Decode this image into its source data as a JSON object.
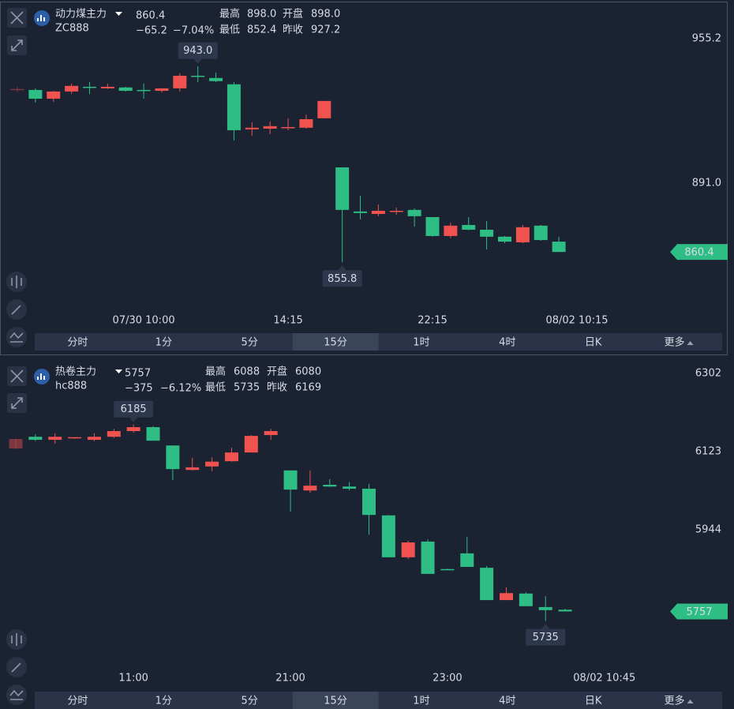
{
  "panels": [
    {
      "name": "动力煤主力",
      "code": "ZC888",
      "price": "860.4",
      "change": "−65.2",
      "change_pct": "−7.04%",
      "stats": [
        {
          "label": "最高",
          "value": "898.0"
        },
        {
          "label": "开盘",
          "value": "898.0"
        },
        {
          "label": "最低",
          "value": "852.4"
        },
        {
          "label": "昨收",
          "value": "927.2"
        }
      ],
      "tabs": [
        "分时",
        "1分",
        "5分",
        "15分",
        "1时",
        "4时",
        "日K",
        "更多"
      ],
      "active_tab": 3
    },
    {
      "name": "热卷主力",
      "code": "hc888",
      "price": "5757",
      "change": "−375",
      "change_pct": "−6.12%",
      "stats": [
        {
          "label": "最高",
          "value": "6088"
        },
        {
          "label": "开盘",
          "value": "6080"
        },
        {
          "label": "最低",
          "value": "5735"
        },
        {
          "label": "昨收",
          "value": "6169"
        }
      ],
      "tabs": [
        "分时",
        "1分",
        "5分",
        "15分",
        "1时",
        "4时",
        "日K",
        "更多"
      ],
      "active_tab": 3
    }
  ],
  "chart_data": [
    {
      "type": "candlestick",
      "up_color": "#f0524f",
      "down_color": "#2ebd85",
      "categories": [
        null,
        null,
        null,
        null,
        null,
        null,
        null,
        "07/30 10:00",
        null,
        null,
        null,
        null,
        null,
        null,
        null,
        "14:15",
        null,
        null,
        null,
        null,
        null,
        null,
        null,
        "22:15",
        null,
        null,
        null,
        null,
        null,
        null,
        null,
        "08/02 10:15"
      ],
      "open": [
        932.8,
        932.4,
        928.5,
        931.7,
        933.8,
        933.1,
        933.5,
        932.4,
        932.0,
        933.1,
        938.7,
        937.7,
        934.9,
        914.9,
        915.2,
        915.6,
        915.6,
        919.8,
        898.0,
        878.4,
        877.3,
        878.4,
        879.1,
        875.9,
        867.5,
        872.4,
        870.3,
        867.2,
        864.7,
        872.1,
        865.0,
        null
      ],
      "high": [
        933.8,
        933.1,
        932.0,
        935.2,
        935.9,
        935.2,
        933.8,
        935.2,
        933.1,
        939.8,
        943.0,
        940.1,
        935.9,
        918.0,
        918.4,
        919.8,
        921.5,
        927.5,
        898.0,
        885.4,
        881.5,
        880.1,
        879.8,
        875.9,
        873.5,
        875.9,
        874.2,
        867.5,
        872.4,
        872.4,
        867.2,
        null
      ],
      "low": [
        931.3,
        926.8,
        927.1,
        930.6,
        930.6,
        932.8,
        931.7,
        928.5,
        931.3,
        931.7,
        935.9,
        935.9,
        909.9,
        912.1,
        912.8,
        914.5,
        915.2,
        919.8,
        855.8,
        874.9,
        876.3,
        877.0,
        871.7,
        867.2,
        866.5,
        870.0,
        861.5,
        864.3,
        864.3,
        865.4,
        860.4,
        null
      ],
      "close": [
        932.8,
        928.5,
        931.7,
        934.2,
        933.5,
        933.8,
        932.0,
        932.0,
        933.1,
        938.7,
        938.4,
        936.3,
        914.5,
        915.6,
        916.3,
        915.9,
        919.4,
        927.5,
        879.1,
        877.7,
        878.7,
        878.7,
        876.3,
        867.5,
        872.1,
        870.3,
        867.2,
        865.0,
        871.4,
        865.7,
        860.4,
        null
      ],
      "ylim": [
        833.8,
        970.6
      ],
      "yticks": [
        955.2,
        {
          "value": 891,
          "label": "891.0"
        }
      ],
      "annotations": [
        {
          "value": 943.0,
          "label": "943.0"
        },
        {
          "value": 855.8,
          "label": "855.8"
        }
      ],
      "last": 860.4
    },
    {
      "type": "candlestick",
      "up_color": "#f0524f",
      "down_color": "#2ebd85",
      "categories": [
        null,
        null,
        null,
        null,
        null,
        null,
        "11:00",
        null,
        null,
        null,
        null,
        null,
        null,
        null,
        "21:00",
        null,
        null,
        null,
        null,
        null,
        null,
        null,
        "23:00",
        null,
        null,
        null,
        null,
        null,
        null,
        null,
        "08/02 10:45"
      ],
      "open": [
        6130,
        6157,
        6150,
        6154,
        6150,
        6157,
        6170,
        6179,
        6137,
        6081,
        6089,
        6101,
        6121,
        6161,
        6080,
        6034,
        6047,
        6043,
        6038,
        5977,
        5881,
        5917,
        5854,
        5890,
        5857,
        5783,
        5798,
        5767,
        5761,
        null,
        null
      ],
      "high": [
        6152,
        6163,
        6165,
        6156,
        6165,
        6175,
        6185,
        6181,
        6137,
        6109,
        6110,
        6132,
        6161,
        6175,
        6080,
        6080,
        6060,
        6053,
        6049,
        5978,
        5919,
        5922,
        5855,
        5928,
        5861,
        5812,
        5801,
        5792,
        5763,
        null,
        null
      ],
      "low": [
        6130,
        6147,
        6141,
        6152,
        6147,
        6154,
        6166,
        6148,
        6058,
        6080,
        6078,
        6100,
        6121,
        6150,
        5986,
        6029,
        6042,
        6034,
        5933,
        5881,
        5877,
        5843,
        5852,
        5859,
        5783,
        5783,
        5769,
        5735,
        5757,
        null,
        null
      ],
      "close": [
        6152,
        6150,
        6157,
        6156,
        6157,
        6170,
        6179,
        6148,
        6083,
        6087,
        6100,
        6121,
        6159,
        6170,
        6036,
        6045,
        6043,
        6038,
        5978,
        5881,
        5915,
        5843,
        5852,
        5859,
        5783,
        5799,
        5769,
        5760,
        5757,
        null,
        null
      ],
      "ylim": [
        5624,
        6325.5
      ],
      "yticks": [
        6302,
        6123,
        5944
      ],
      "annotations": [
        {
          "value": 6185,
          "label": "6185"
        },
        {
          "value": 5735,
          "label": "5735"
        }
      ],
      "last": 5757
    }
  ]
}
